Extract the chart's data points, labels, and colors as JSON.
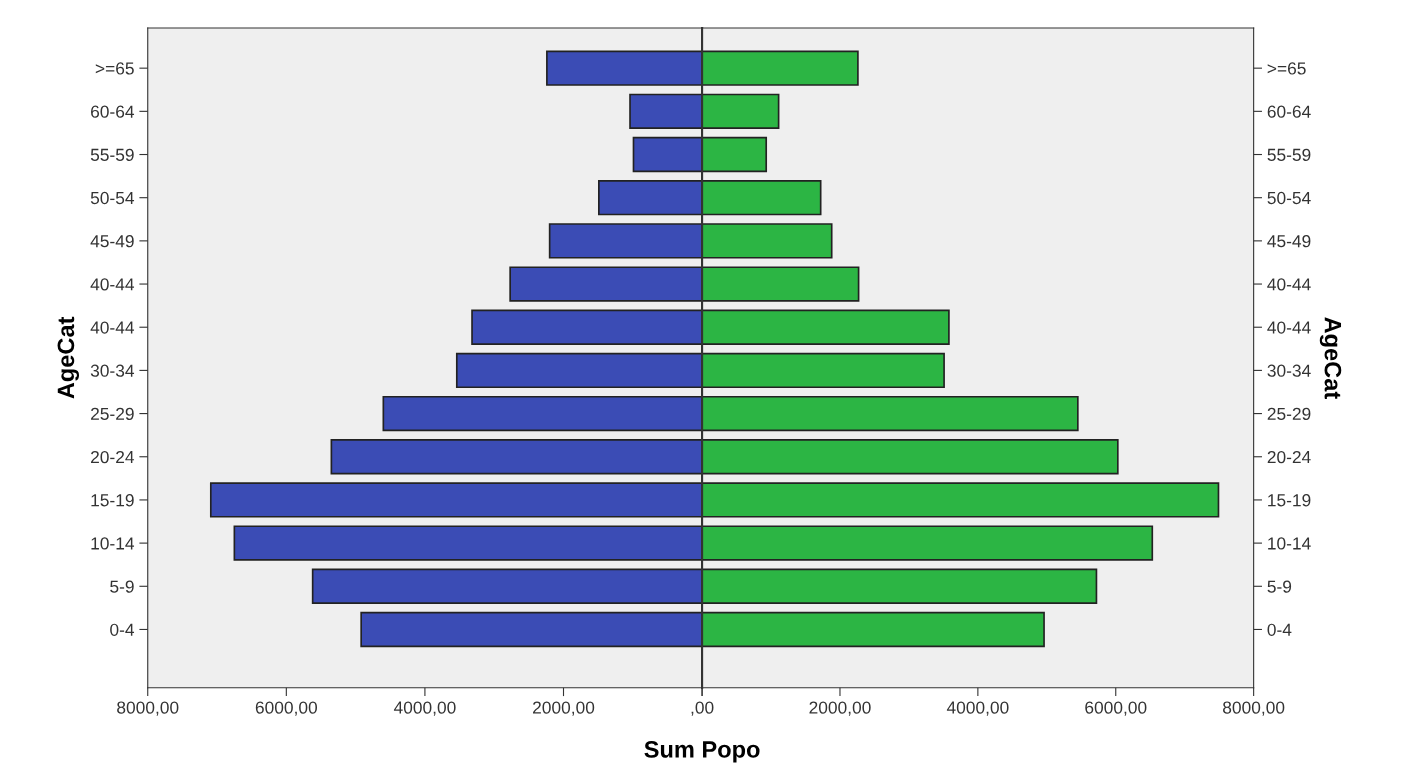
{
  "chart_data": [
    {
      "type": "bar",
      "orientation": "horizontal",
      "ylabel": "AgeCat",
      "xlabel": "Sum Popo",
      "categories": [
        ">=65",
        "60-64",
        "55-59",
        "50-54",
        "45-49",
        "40-44",
        "40-44",
        "30-34",
        "25-29",
        "20-24",
        "15-19",
        "10-14",
        "5-9",
        "0-4"
      ],
      "series": [
        {
          "color": "#3b4cb5",
          "values": [
            2240,
            1040,
            990,
            1490,
            2200,
            2770,
            3320,
            3540,
            4600,
            5350,
            7090,
            6750,
            5620,
            4920
          ]
        }
      ],
      "xlim": [
        8000,
        0
      ],
      "xticks": [
        {
          "value": 8000,
          "label": "8000,00"
        },
        {
          "value": 6000,
          "label": "6000,00"
        },
        {
          "value": 4000,
          "label": "4000,00"
        },
        {
          "value": 2000,
          "label": "2000,00"
        },
        {
          "value": 0,
          "label": null
        }
      ],
      "grid": false,
      "legend": false
    },
    {
      "type": "bar",
      "orientation": "horizontal",
      "ylabel": "AgeCat",
      "categories": [
        ">=65",
        "60-64",
        "55-59",
        "50-54",
        "45-49",
        "40-44",
        "40-44",
        "30-34",
        "25-29",
        "20-24",
        "15-19",
        "10-14",
        "5-9",
        "0-4"
      ],
      "series": [
        {
          "color": "#2cb544",
          "values": [
            2260,
            1110,
            930,
            1720,
            1880,
            2270,
            3580,
            3510,
            5450,
            6030,
            7490,
            6530,
            5720,
            4960
          ]
        }
      ],
      "xlim": [
        0,
        8000
      ],
      "xticks": [
        {
          "value": 0,
          "label": ",00"
        },
        {
          "value": 2000,
          "label": "2000,00"
        },
        {
          "value": 4000,
          "label": "4000,00"
        },
        {
          "value": 6000,
          "label": "6000,00"
        },
        {
          "value": 8000,
          "label": "8000,00"
        }
      ],
      "grid": false,
      "legend": false
    }
  ]
}
